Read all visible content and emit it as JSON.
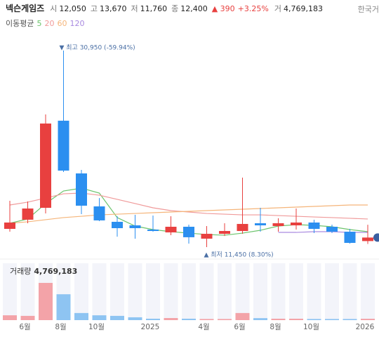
{
  "header": {
    "name": "넥슨게임즈",
    "fields": [
      {
        "label": "시",
        "value": "12,050"
      },
      {
        "label": "고",
        "value": "13,670"
      },
      {
        "label": "저",
        "value": "11,760"
      },
      {
        "label": "종",
        "value": "12,400"
      }
    ],
    "change": "▲ 390",
    "change_pct": "+3.25%",
    "volume_label": "거",
    "volume": "4,769,183",
    "exchange": "한국거"
  },
  "chart_data": {
    "type": "candlestick",
    "ma_title": "이동평균",
    "categories": [
      null,
      "6월",
      null,
      "8월",
      null,
      "10월",
      null,
      null,
      "2025",
      null,
      null,
      "4월",
      null,
      "6월",
      null,
      "8월",
      null,
      "10월",
      null,
      null,
      "2026"
    ],
    "open": [
      13260,
      14170,
      15350,
      23990,
      18760,
      15490,
      13960,
      13610,
      13190,
      12910,
      13470,
      12290,
      12770,
      13050,
      13820,
      13540,
      13610,
      13890,
      13470,
      12980,
      12050
    ],
    "high": [
      16050,
      15980,
      24610,
      30950,
      19110,
      16320,
      14510,
      14650,
      14580,
      14510,
      13680,
      13540,
      13820,
      18340,
      15350,
      14310,
      15280,
      14170,
      13680,
      13260,
      13670
    ],
    "low": [
      12980,
      13820,
      14790,
      18900,
      14720,
      14030,
      12490,
      12290,
      12980,
      12630,
      11800,
      11450,
      12560,
      12770,
      12980,
      12980,
      13190,
      12840,
      12840,
      11800,
      11760
    ],
    "close": [
      13890,
      15280,
      23710,
      19040,
      15560,
      14100,
      13330,
      13330,
      13050,
      13470,
      12430,
      12770,
      13050,
      13750,
      13610,
      13820,
      13890,
      13260,
      12980,
      11870,
      12400
    ],
    "up_color": "#e8403f",
    "down_color": "#2b8ff0",
    "ylim": [
      10545,
      32480
    ],
    "series": [
      {
        "name": "5",
        "color": "#6cc46c",
        "values": [
          13820,
          14240,
          15770,
          17020,
          17300,
          16810,
          14380,
          13540,
          13190,
          12980,
          12840,
          12700,
          12630,
          12840,
          13120,
          13540,
          13680,
          13610,
          13470,
          13190,
          12980
        ]
      },
      {
        "name": "20",
        "color": "#f09a9a",
        "values": [
          15630,
          15910,
          16320,
          16740,
          16810,
          16600,
          16190,
          15770,
          15350,
          15070,
          14930,
          14790,
          14720,
          14650,
          14650,
          14580,
          14510,
          14440,
          14380,
          14310,
          14240
        ]
      },
      {
        "name": "60",
        "color": "#f5b57a",
        "values": [
          13820,
          13960,
          14170,
          14380,
          14510,
          14650,
          14720,
          14790,
          14860,
          14930,
          15000,
          15070,
          15140,
          15210,
          15280,
          15350,
          15420,
          15490,
          15560,
          15630,
          15630
        ]
      },
      {
        "name": "120",
        "color": "#a98ae0",
        "values": [
          null,
          null,
          null,
          null,
          null,
          null,
          null,
          null,
          null,
          null,
          null,
          null,
          null,
          null,
          null,
          12910,
          12910,
          12980,
          12980,
          12910,
          12910
        ]
      }
    ],
    "annotations": {
      "max": "▼ 최고 30,950 (-59.94%)",
      "min": "▲ 최저 11,450 (8.30%)"
    },
    "volume": {
      "label": "거래량",
      "values": [
        17000000,
        15000000,
        131000000,
        91000000,
        25000000,
        17000000,
        15000000,
        10000000,
        5000000,
        7400000,
        5000000,
        4000000,
        4000000,
        25000000,
        7000000,
        5000000,
        5000000,
        4000000,
        4000000,
        4000000,
        4769183
      ],
      "ylim": [
        0,
        200000000
      ],
      "up_color": "#f3a3a8",
      "down_color": "#8ec4f2"
    }
  }
}
